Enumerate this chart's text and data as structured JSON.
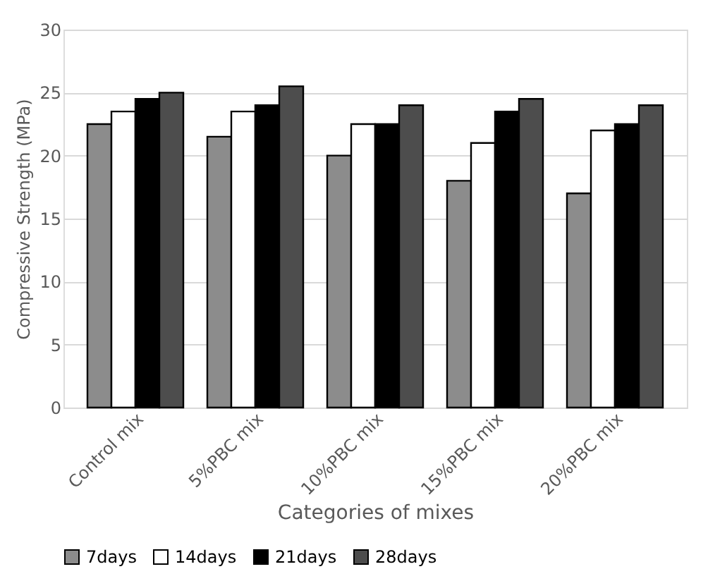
{
  "chart_data": {
    "type": "bar",
    "xlabel": "Categories of mixes",
    "ylabel": "Compressive Strength (MPa)",
    "categories": [
      "Control mix",
      "5%PBC mix",
      "10%PBC mix",
      "15%PBC mix",
      "20%PBC mix"
    ],
    "series": [
      {
        "name": "7days",
        "color": "#8c8c8c",
        "values": [
          22.5,
          21.5,
          20,
          18,
          17
        ]
      },
      {
        "name": "14days",
        "color": "#ffffff",
        "values": [
          23.5,
          23.5,
          22.5,
          21,
          22
        ]
      },
      {
        "name": "21days",
        "color": "#000000",
        "values": [
          24.5,
          24,
          22.5,
          23.5,
          22.5
        ]
      },
      {
        "name": "28days",
        "color": "#4d4d4d",
        "values": [
          25,
          25.5,
          24,
          24.5,
          24
        ]
      }
    ],
    "ylim": [
      0,
      30
    ],
    "yticks": [
      0,
      5,
      10,
      15,
      20,
      25,
      30
    ],
    "grid": "y",
    "legend": "bottom"
  }
}
